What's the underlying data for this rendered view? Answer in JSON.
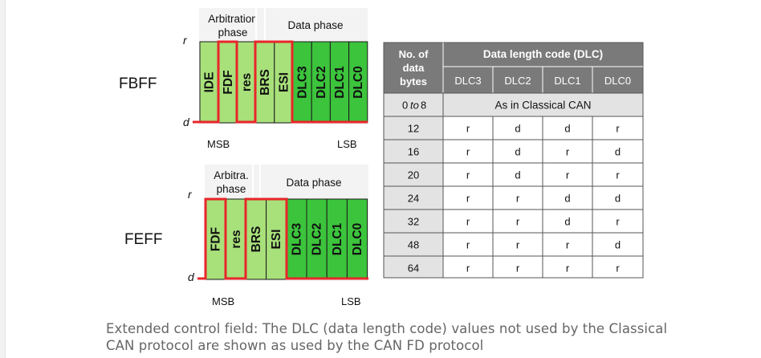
{
  "fbff": {
    "label": "FBFF",
    "r_label": "r",
    "d_label": "d",
    "header_arb_line1": "Arbitration",
    "header_arb_line2": "phase",
    "header_data": "Data phase",
    "bits": [
      "IDE",
      "FDF",
      "res",
      "BRS",
      "ESI",
      "DLC3",
      "DLC2",
      "DLC1",
      "DLC0"
    ],
    "msb": "MSB",
    "lsb": "LSB"
  },
  "feff": {
    "label": "FEFF",
    "r_label": "r",
    "d_label": "d",
    "header_arb_line1": "Arbitra.",
    "header_arb_line2": "phase",
    "header_data": "Data phase",
    "bits": [
      "FDF",
      "res",
      "BRS",
      "ESI",
      "DLC3",
      "DLC2",
      "DLC1",
      "DLC0"
    ],
    "msb": "MSB",
    "lsb": "LSB"
  },
  "dlc_table": {
    "col0_line1": "No. of",
    "col0_line2": "data",
    "col0_line3": "bytes",
    "group_header": "Data length code (DLC)",
    "sub_headers": [
      "DLC3",
      "DLC2",
      "DLC1",
      "DLC0"
    ],
    "first_row_bytes_a": "0",
    "first_row_bytes_to": "to",
    "first_row_bytes_b": "8",
    "first_row_text": "As in Classical CAN",
    "rows": [
      {
        "bytes": "12",
        "vals": [
          "r",
          "d",
          "d",
          "r"
        ]
      },
      {
        "bytes": "16",
        "vals": [
          "r",
          "d",
          "r",
          "d"
        ]
      },
      {
        "bytes": "20",
        "vals": [
          "r",
          "d",
          "r",
          "r"
        ]
      },
      {
        "bytes": "24",
        "vals": [
          "r",
          "r",
          "d",
          "d"
        ]
      },
      {
        "bytes": "32",
        "vals": [
          "r",
          "r",
          "d",
          "r"
        ]
      },
      {
        "bytes": "48",
        "vals": [
          "r",
          "r",
          "r",
          "d"
        ]
      },
      {
        "bytes": "64",
        "vals": [
          "r",
          "r",
          "r",
          "r"
        ]
      }
    ]
  },
  "caption": "Extended control field: The DLC (data length code) values not used by the Classical CAN protocol are shown as used by the CAN FD protocol",
  "colors": {
    "light_green": "#a8e07a",
    "dark_green": "#3cc43c",
    "red": "#e8262a",
    "table_header": "#7a7a7a",
    "table_light": "#e3e3e3",
    "table_grid": "#555555"
  }
}
